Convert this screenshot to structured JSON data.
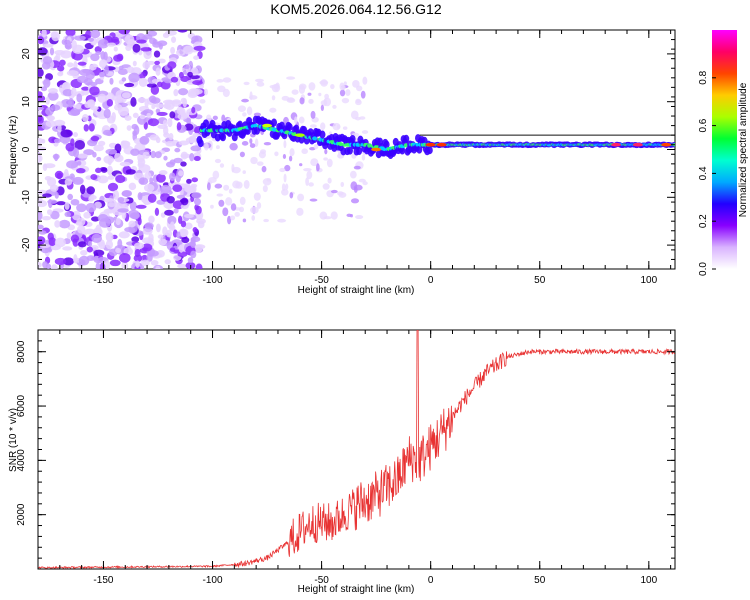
{
  "title": "KOM5.2026.064.12.56.G12",
  "chart_data": [
    {
      "type": "heatmap",
      "name": "spectrogram",
      "xlabel": "Height of straight line (km)",
      "ylabel": "Frequency (Hz)",
      "xlim": [
        -180,
        112
      ],
      "ylim": [
        -25,
        25
      ],
      "xticks": [
        -150,
        -100,
        -50,
        0,
        50,
        100
      ],
      "yticks": [
        -20,
        -10,
        0,
        10,
        20
      ],
      "colorbar": {
        "label": "Normalized spectral amplitude",
        "range": [
          0,
          1
        ],
        "ticks": [
          "0.0",
          "0.2",
          "0.4",
          "0.6",
          "0.8"
        ],
        "colors": [
          "#ffffff",
          "#d9b3ff",
          "#8800ff",
          "#2200ff",
          "#00aaff",
          "#00ffd0",
          "#00ff33",
          "#aaff00",
          "#ffcc00",
          "#ff4400",
          "#ff0066",
          "#ff00ff"
        ]
      },
      "ridge": {
        "description": "signal track",
        "points": [
          [
            -105,
            4
          ],
          [
            -90,
            4
          ],
          [
            -80,
            5
          ],
          [
            -70,
            4
          ],
          [
            -60,
            3
          ],
          [
            -50,
            2
          ],
          [
            -40,
            1
          ],
          [
            -30,
            1
          ],
          [
            -20,
            0
          ],
          [
            -10,
            1
          ],
          [
            0,
            1
          ],
          [
            50,
            1
          ],
          [
            112,
            1
          ]
        ]
      }
    },
    {
      "type": "line",
      "name": "snr",
      "xlabel": "Height of straight line (km)",
      "ylabel": "SNR (10 * v/v)",
      "xlim": [
        -180,
        112
      ],
      "ylim": [
        0,
        8800
      ],
      "xticks": [
        -150,
        -100,
        -50,
        0,
        50,
        100
      ],
      "yticks": [
        2000,
        4000,
        6000,
        8000
      ],
      "color": "#e83232",
      "trend": [
        [
          -180,
          50
        ],
        [
          -100,
          100
        ],
        [
          -85,
          200
        ],
        [
          -75,
          400
        ],
        [
          -65,
          1000
        ],
        [
          -55,
          1700
        ],
        [
          -45,
          1700
        ],
        [
          -35,
          2300
        ],
        [
          -25,
          2700
        ],
        [
          -15,
          3300
        ],
        [
          -10,
          4100
        ],
        [
          -5,
          4000
        ],
        [
          5,
          5000
        ],
        [
          15,
          6200
        ],
        [
          25,
          7200
        ],
        [
          35,
          7800
        ],
        [
          45,
          8000
        ],
        [
          112,
          8000
        ]
      ],
      "spike": {
        "x": -6,
        "y": 8800
      }
    }
  ]
}
